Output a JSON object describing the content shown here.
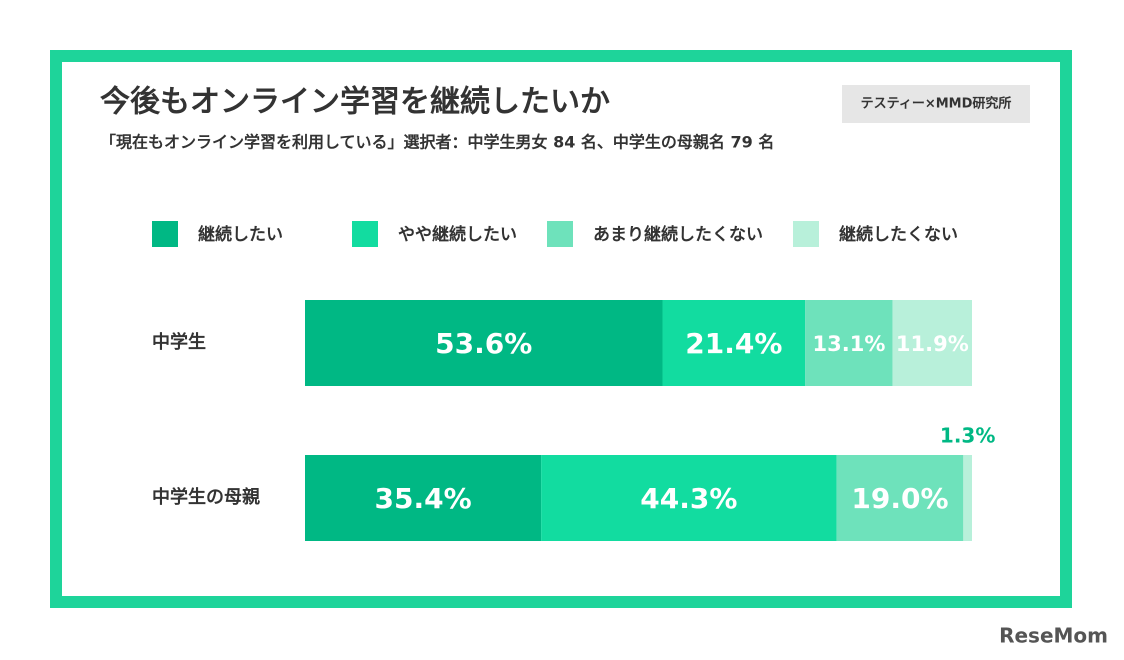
{
  "chart_data": {
    "type": "stacked-bar-horizontal",
    "title": "今後もオンライン学習を継続したいか",
    "subtitle": "「現在もオンライン学習を利用している」選択者：中学生男女 84 名、中学生の母親名 79 名",
    "source": "テスティー×MMD研究所",
    "brand": "ReseMom",
    "categories": [
      "中学生",
      "中学生の母親"
    ],
    "series": [
      {
        "name": "継続したい",
        "color": "#00b884",
        "values": [
          53.6,
          35.4
        ],
        "value_labels": [
          "53.6%",
          "35.4%"
        ]
      },
      {
        "name": "やや継続したい",
        "color": "#12dca0",
        "values": [
          21.4,
          44.3
        ],
        "value_labels": [
          "21.4%",
          "44.3%"
        ]
      },
      {
        "name": "あまり継続したくない",
        "color": "#6ee2bb",
        "values": [
          13.1,
          19.0
        ],
        "value_labels": [
          "13.1%",
          "19.0%"
        ]
      },
      {
        "name": "継続したくない",
        "color": "#b8f0da",
        "values": [
          11.9,
          1.3
        ],
        "value_labels": [
          "11.9%",
          "1.3%"
        ]
      }
    ]
  }
}
